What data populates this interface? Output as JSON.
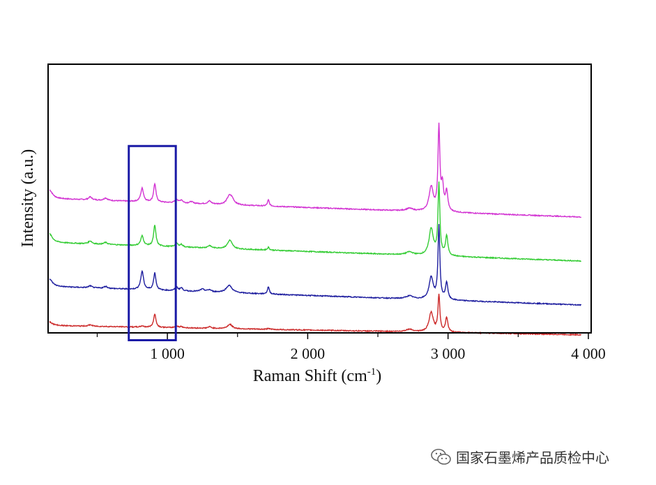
{
  "chart_data": {
    "type": "line",
    "xlabel": "Raman Shift (cm",
    "xlabel_sup": "-1",
    "xlabel_close": ")",
    "ylabel": "Intensity (a.u.)",
    "xlim": [
      150,
      4020
    ],
    "ylim": [
      0,
      11
    ],
    "x_ticks": [
      {
        "value": 1000,
        "label": "1 000"
      },
      {
        "value": 2000,
        "label": "2 000"
      },
      {
        "value": 3000,
        "label": "3 000"
      },
      {
        "value": 4000,
        "label": "4 000"
      }
    ],
    "x_minor_ticks": [
      500,
      1500,
      2500,
      3500
    ],
    "grid": false,
    "legend": false,
    "highlight_box": {
      "x_range": [
        725,
        1060
      ],
      "y_range": [
        -0.3,
        7.65
      ],
      "color": "#1a1aa6"
    },
    "series": [
      {
        "color": "#d233d2",
        "baseline": 5.5,
        "slope": -0.0002,
        "noise": 0.02,
        "peaks": [
          [
            160,
            0.35,
            25
          ],
          [
            450,
            0.12,
            15
          ],
          [
            560,
            0.1,
            15
          ],
          [
            820,
            0.55,
            12
          ],
          [
            910,
            0.75,
            10
          ],
          [
            1065,
            0.15,
            12
          ],
          [
            1100,
            0.12,
            12
          ],
          [
            1170,
            0.07,
            15
          ],
          [
            1300,
            0.12,
            15
          ],
          [
            1440,
            0.3,
            20
          ],
          [
            1460,
            0.2,
            20
          ],
          [
            1720,
            0.25,
            8
          ],
          [
            2725,
            0.1,
            30
          ],
          [
            2880,
            1.0,
            18
          ],
          [
            2935,
            3.4,
            8
          ],
          [
            2960,
            1.0,
            10
          ],
          [
            2990,
            0.8,
            10
          ]
        ]
      },
      {
        "color": "#33cc33",
        "baseline": 3.7,
        "slope": -0.0002,
        "noise": 0.02,
        "peaks": [
          [
            160,
            0.35,
            25
          ],
          [
            450,
            0.12,
            15
          ],
          [
            560,
            0.08,
            15
          ],
          [
            820,
            0.4,
            12
          ],
          [
            910,
            0.85,
            10
          ],
          [
            1065,
            0.15,
            12
          ],
          [
            1100,
            0.1,
            12
          ],
          [
            1300,
            0.1,
            15
          ],
          [
            1445,
            0.35,
            20
          ],
          [
            1720,
            0.12,
            8
          ],
          [
            2725,
            0.12,
            30
          ],
          [
            2880,
            1.1,
            18
          ],
          [
            2935,
            2.9,
            8
          ],
          [
            2990,
            0.8,
            10
          ]
        ]
      },
      {
        "color": "#1c1c9e",
        "baseline": 1.9,
        "slope": -0.0002,
        "noise": 0.02,
        "peaks": [
          [
            160,
            0.3,
            25
          ],
          [
            450,
            0.08,
            15
          ],
          [
            560,
            0.08,
            15
          ],
          [
            820,
            0.75,
            12
          ],
          [
            910,
            0.7,
            10
          ],
          [
            1065,
            0.15,
            12
          ],
          [
            1100,
            0.12,
            12
          ],
          [
            1250,
            0.1,
            20
          ],
          [
            1300,
            0.08,
            15
          ],
          [
            1440,
            0.3,
            25
          ],
          [
            1720,
            0.3,
            8
          ],
          [
            2725,
            0.12,
            30
          ],
          [
            2880,
            0.9,
            18
          ],
          [
            2935,
            3.0,
            8
          ],
          [
            2990,
            0.7,
            10
          ]
        ]
      },
      {
        "color": "#cc2a2a",
        "baseline": 0.3,
        "slope": -0.0001,
        "noise": 0.02,
        "peaks": [
          [
            160,
            0.15,
            25
          ],
          [
            450,
            0.06,
            15
          ],
          [
            820,
            0.05,
            12
          ],
          [
            910,
            0.55,
            10
          ],
          [
            1065,
            0.07,
            12
          ],
          [
            1100,
            0.05,
            12
          ],
          [
            1300,
            0.06,
            15
          ],
          [
            1445,
            0.18,
            20
          ],
          [
            1720,
            0.05,
            8
          ],
          [
            2725,
            0.1,
            30
          ],
          [
            2880,
            0.8,
            18
          ],
          [
            2935,
            1.5,
            8
          ],
          [
            2990,
            0.6,
            10
          ]
        ]
      }
    ]
  },
  "watermark": {
    "icon": "wechat-icon",
    "text": "国家石墨烯产品质检中心"
  }
}
